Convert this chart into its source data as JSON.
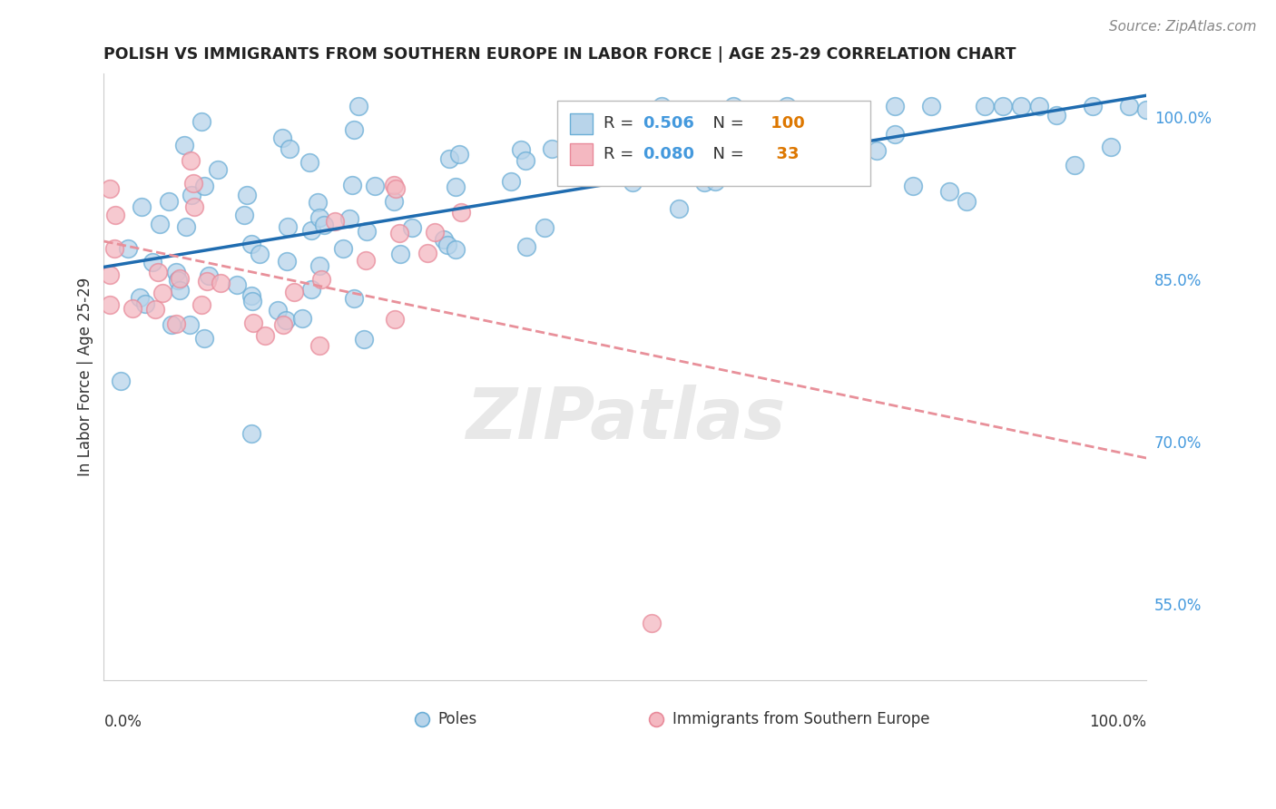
{
  "title": "POLISH VS IMMIGRANTS FROM SOUTHERN EUROPE IN LABOR FORCE | AGE 25-29 CORRELATION CHART",
  "source": "Source: ZipAtlas.com",
  "ylabel": "In Labor Force | Age 25-29",
  "R_blue": 0.506,
  "N_blue": 100,
  "R_pink": 0.08,
  "N_pink": 33,
  "blue_face": "#b8d4ea",
  "blue_edge": "#6baed6",
  "pink_face": "#f4b8c1",
  "pink_edge": "#e88a9a",
  "trend_blue": "#1f6cb0",
  "trend_pink": "#e8909a",
  "legend_blue": "Poles",
  "legend_pink": "Immigrants from Southern Europe",
  "right_yticks": [
    0.55,
    0.7,
    0.85,
    1.0
  ],
  "right_yticklabels": [
    "55.0%",
    "70.0%",
    "85.0%",
    "100.0%"
  ],
  "xmin": 0.0,
  "xmax": 1.0,
  "ymin": 0.48,
  "ymax": 1.04,
  "R_color": "#4499dd",
  "N_color": "#dd7700",
  "label_color": "#333333",
  "grid_color": "#dddddd",
  "source_color": "#888888"
}
